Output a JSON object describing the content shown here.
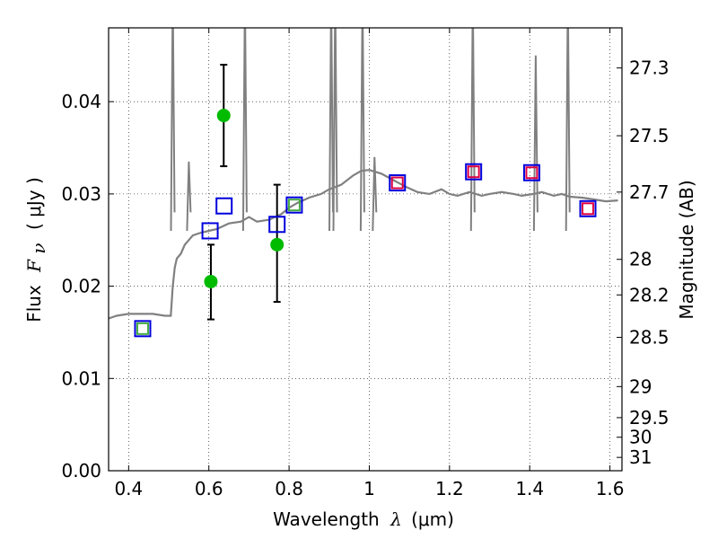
{
  "chart_data": {
    "type": "scatter",
    "xlabel_pre": "Wavelength",
    "xlabel_symbol": "λ",
    "xlabel_unit": "(μm)",
    "ylabel_pre": "Flux",
    "ylabel_symbol": "F",
    "ylabel_sub": "ν",
    "ylabel_unit": "( μJy )",
    "ylabel_right": "Magnitude (AB)",
    "xlim": [
      0.35,
      1.63
    ],
    "ylim": [
      0.0,
      0.048
    ],
    "grid": true,
    "x_ticks": [
      0.4,
      0.6,
      0.8,
      1.0,
      1.2,
      1.4,
      1.6
    ],
    "x_tick_labels": [
      "0.4",
      "0.6",
      "0.8",
      "1",
      "1.2",
      "1.4",
      "1.6"
    ],
    "y_ticks": [
      0.0,
      0.01,
      0.02,
      0.03,
      0.04
    ],
    "y_tick_labels": [
      "0.00",
      "0.01",
      "0.02",
      "0.03",
      "0.04"
    ],
    "right_ticks": [
      27.3,
      27.5,
      27.7,
      28,
      28.2,
      28.5,
      29,
      29.5,
      30,
      31
    ],
    "right_tick_labels": [
      "27.3",
      "27.5",
      "27.7",
      "28",
      "28.2",
      "28.5",
      "29",
      "29.5",
      "30",
      "31"
    ],
    "series": [
      {
        "kind": "spectrum-line",
        "color": "#808080",
        "x": [
          0.35,
          0.37,
          0.4,
          0.43,
          0.46,
          0.49,
          0.505,
          0.51,
          0.515,
          0.52,
          0.53,
          0.54,
          0.55,
          0.56,
          0.58,
          0.6,
          0.62,
          0.65,
          0.68,
          0.7,
          0.72,
          0.75,
          0.78,
          0.8,
          0.82,
          0.85,
          0.88,
          0.9,
          0.93,
          0.96,
          0.98,
          1.0,
          1.03,
          1.06,
          1.09,
          1.12,
          1.15,
          1.18,
          1.2,
          1.22,
          1.25,
          1.28,
          1.3,
          1.33,
          1.36,
          1.38,
          1.41,
          1.43,
          1.46,
          1.48,
          1.5,
          1.53,
          1.56,
          1.59,
          1.62
        ],
        "y": [
          0.0165,
          0.0168,
          0.017,
          0.017,
          0.017,
          0.0168,
          0.0168,
          0.02,
          0.022,
          0.023,
          0.0235,
          0.0245,
          0.025,
          0.0255,
          0.0258,
          0.026,
          0.0262,
          0.0268,
          0.027,
          0.0275,
          0.027,
          0.0272,
          0.0278,
          0.0285,
          0.029,
          0.0296,
          0.03,
          0.0305,
          0.031,
          0.032,
          0.0325,
          0.0326,
          0.0322,
          0.0315,
          0.0308,
          0.0302,
          0.03,
          0.0305,
          0.03,
          0.0298,
          0.0302,
          0.0298,
          0.03,
          0.0302,
          0.03,
          0.0298,
          0.03,
          0.0302,
          0.0298,
          0.03,
          0.0297,
          0.0296,
          0.0294,
          0.0292,
          0.0293
        ]
      },
      {
        "kind": "observed-photometry",
        "color": "#00bb00",
        "x": [
          0.605,
          0.637,
          0.77
        ],
        "y": [
          0.0205,
          0.0385,
          0.0245
        ],
        "yerr_low": [
          0.0164,
          0.033,
          0.0183
        ],
        "yerr_high": [
          0.0245,
          0.044,
          0.031
        ]
      },
      {
        "kind": "model-photometry-blue",
        "color": "#0000dd",
        "x": [
          0.435,
          0.603,
          0.638,
          0.77,
          0.813,
          1.07,
          1.26,
          1.405,
          1.545
        ],
        "y": [
          0.0154,
          0.026,
          0.0287,
          0.0267,
          0.0288,
          0.0312,
          0.0324,
          0.0323,
          0.0284
        ]
      },
      {
        "kind": "photometry-green",
        "color": "#44aa44",
        "x": [
          0.435,
          0.813
        ],
        "y": [
          0.0154,
          0.0288
        ]
      },
      {
        "kind": "photometry-red",
        "color": "#dd0044",
        "x": [
          1.07,
          1.26,
          1.405,
          1.545
        ],
        "y": [
          0.0312,
          0.0324,
          0.0323,
          0.0284
        ]
      }
    ]
  }
}
